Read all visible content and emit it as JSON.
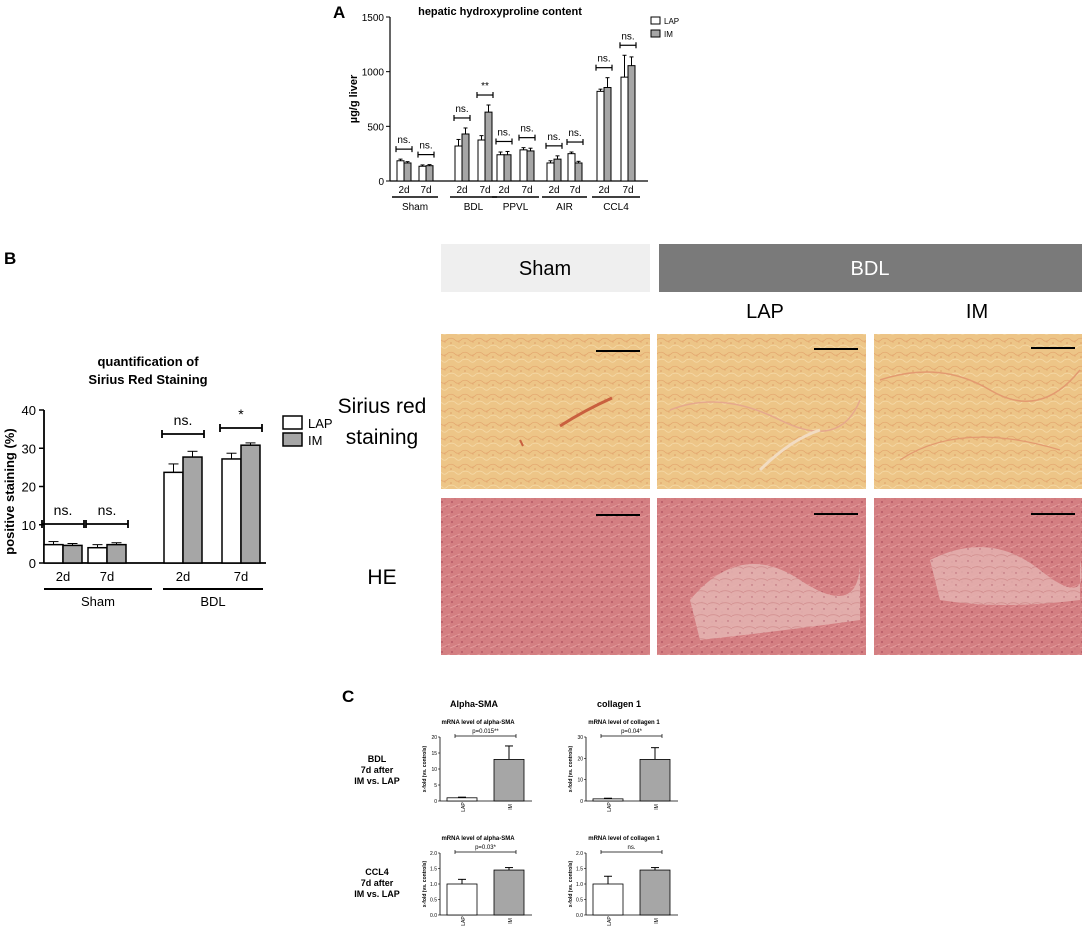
{
  "panel_labels": {
    "A": "A",
    "B": "B",
    "C": "C"
  },
  "micrographs": {
    "header_sham": "Sham",
    "header_bdl": "BDL",
    "sub_lap": "LAP",
    "sub_im": "IM",
    "row_sirius_line1": "Sirius red",
    "row_sirius_line2": "staining",
    "row_he": "HE",
    "colors": {
      "sham_header": "#efefef",
      "bdl_header": "#7a7a7a",
      "sirius_base": "#edc587",
      "he_base": "#d47f82"
    }
  },
  "chart_data": [
    {
      "id": "A",
      "type": "bar",
      "title": "hepatic hydroxyproline content",
      "ylabel": "µg/g liver",
      "xlabel": "",
      "ylim": [
        0,
        1500
      ],
      "yticks": [
        "0",
        "500",
        "1000",
        "1500"
      ],
      "groups": [
        "Sham",
        "BDL",
        "PPVL",
        "AIR",
        "CCL4"
      ],
      "categories": [
        "2d",
        "7d",
        "2d",
        "7d",
        "2d",
        "7d",
        "2d",
        "7d",
        "2d",
        "7d"
      ],
      "series": [
        {
          "name": "LAP",
          "color": "#ffffff",
          "values": [
            185,
            135,
            320,
            375,
            240,
            285,
            165,
            250,
            820,
            950
          ],
          "errors": [
            15,
            12,
            60,
            40,
            25,
            20,
            20,
            15,
            20,
            200
          ]
        },
        {
          "name": "IM",
          "color": "#a6a6a6",
          "values": [
            165,
            140,
            430,
            630,
            240,
            275,
            200,
            165,
            855,
            1055
          ],
          "errors": [
            12,
            10,
            55,
            65,
            30,
            25,
            30,
            15,
            90,
            80
          ]
        }
      ],
      "annotations": [
        "ns.",
        "ns.",
        "ns.",
        "**",
        "ns.",
        "ns.",
        "ns.",
        "ns.",
        "ns.",
        "ns."
      ],
      "legend": "top-right"
    },
    {
      "id": "B",
      "type": "bar",
      "title": "quantification of",
      "title2": "Sirius Red Staining",
      "ylabel": "positive staining (%)",
      "xlabel": "",
      "ylim": [
        0,
        40
      ],
      "yticks": [
        "0",
        "10",
        "20",
        "30",
        "40"
      ],
      "groups": [
        "Sham",
        "BDL"
      ],
      "categories": [
        "2d",
        "7d",
        "2d",
        "7d"
      ],
      "series": [
        {
          "name": "LAP",
          "color": "#ffffff",
          "values": [
            4.8,
            4.0,
            23.7,
            27.2
          ],
          "errors": [
            0.8,
            0.8,
            2.2,
            1.5
          ]
        },
        {
          "name": "IM",
          "color": "#a6a6a6",
          "values": [
            4.6,
            4.8,
            27.7,
            30.8
          ],
          "errors": [
            0.5,
            0.5,
            1.5,
            0.6
          ]
        }
      ],
      "annotations": [
        "ns.",
        "ns.",
        "ns.",
        "*"
      ],
      "legend": "right"
    },
    {
      "id": "C",
      "type": "bar",
      "column_titles": [
        "Alpha-SMA",
        "collagen 1"
      ],
      "row_labels": [
        [
          "BDL",
          "7d after",
          "IM vs. LAP"
        ],
        [
          "CCL4",
          "7d after",
          "IM vs. LAP"
        ]
      ],
      "ylabel": "x-fold (vs. controls)",
      "plots": [
        {
          "title": "mRNA level of alpha-SMA",
          "categories": [
            "LAP",
            "IM"
          ],
          "values": [
            1.0,
            13.0
          ],
          "errors": [
            0.2,
            4.2
          ],
          "ylim": [
            0,
            20
          ],
          "yticks": [
            "0",
            "5",
            "10",
            "15",
            "20"
          ],
          "annotation": "p=0.015**"
        },
        {
          "title": "mRNA level of collagen 1",
          "categories": [
            "LAP",
            "IM"
          ],
          "values": [
            1.0,
            19.5
          ],
          "errors": [
            0.3,
            5.5
          ],
          "ylim": [
            0,
            30
          ],
          "yticks": [
            "0",
            "10",
            "20",
            "30"
          ],
          "annotation": "p=0.04*"
        },
        {
          "title": "mRNA level of alpha-SMA",
          "categories": [
            "LAP",
            "IM"
          ],
          "values": [
            1.0,
            1.45
          ],
          "errors": [
            0.15,
            0.08
          ],
          "ylim": [
            0,
            2.0
          ],
          "yticks": [
            "0.0",
            "0.5",
            "1.0",
            "1.5",
            "2.0"
          ],
          "annotation": "p=0.03*"
        },
        {
          "title": "mRNA level of collagen 1",
          "categories": [
            "LAP",
            "IM"
          ],
          "values": [
            1.0,
            1.45
          ],
          "errors": [
            0.25,
            0.08
          ],
          "ylim": [
            0,
            2.0
          ],
          "yticks": [
            "0.0",
            "0.5",
            "1.0",
            "1.5",
            "2.0"
          ],
          "annotation": "ns."
        }
      ],
      "colors": [
        "#ffffff",
        "#a6a6a6"
      ]
    }
  ]
}
